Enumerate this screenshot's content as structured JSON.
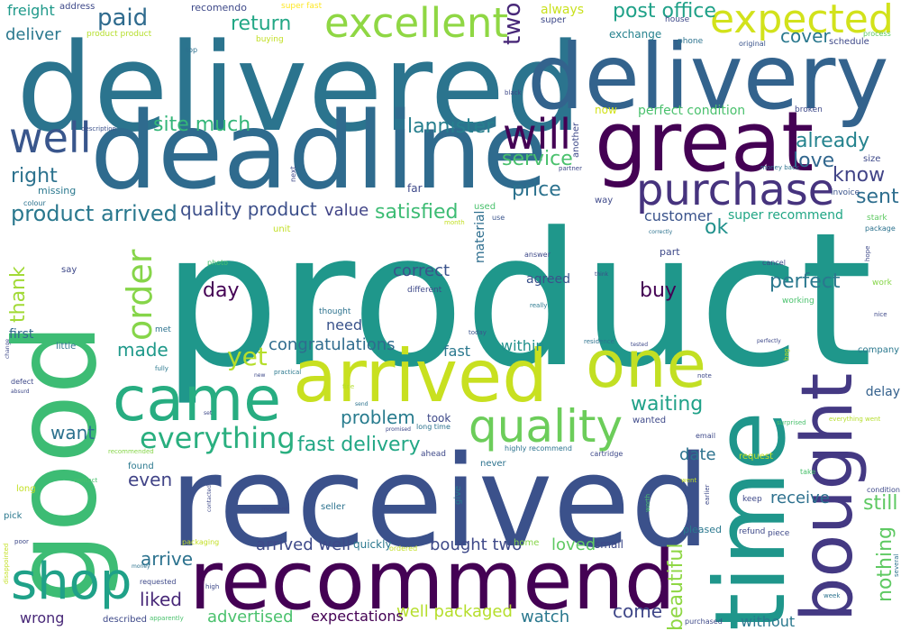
{
  "cloud": {
    "words": [
      {
        "text": "product",
        "color": "#1f978b"
      },
      {
        "text": "received",
        "color": "#3b518b"
      },
      {
        "text": "delivered",
        "color": "#2b748e"
      },
      {
        "text": "deadline",
        "color": "#2f6b8e"
      },
      {
        "text": "delivery",
        "color": "#33638d"
      },
      {
        "text": "good",
        "color": "#3dbc74"
      },
      {
        "text": "time",
        "color": "#1f968b"
      },
      {
        "text": "recommend",
        "color": "#440154"
      },
      {
        "text": "arrived",
        "color": "#c8e020"
      },
      {
        "text": "great",
        "color": "#440154"
      },
      {
        "text": "bought",
        "color": "#443983"
      },
      {
        "text": "came",
        "color": "#27ad81"
      },
      {
        "text": "one",
        "color": "#c2df23"
      },
      {
        "text": "excellent",
        "color": "#8fd744"
      },
      {
        "text": "expected",
        "color": "#d2e21b"
      },
      {
        "text": "purchase",
        "color": "#46337e"
      },
      {
        "text": "quality",
        "color": "#6ccd5a"
      },
      {
        "text": "shop",
        "color": "#1fa188"
      },
      {
        "text": "well",
        "color": "#39568c"
      },
      {
        "text": "will",
        "color": "#440154"
      },
      {
        "text": "order",
        "color": "#86d549"
      },
      {
        "text": "everything",
        "color": "#29af7f"
      },
      {
        "text": "yet",
        "color": "#b5de2b"
      },
      {
        "text": "product arrived",
        "color": "#2a788e"
      },
      {
        "text": "fast delivery",
        "color": "#22a785"
      },
      {
        "text": "paid",
        "color": "#2f6b8e"
      },
      {
        "text": "return",
        "color": "#22a785"
      },
      {
        "text": "post office",
        "color": "#1fa188"
      },
      {
        "text": "two",
        "color": "#482878"
      },
      {
        "text": "cover",
        "color": "#2a788e"
      },
      {
        "text": "site much",
        "color": "#34b679"
      },
      {
        "text": "lannister",
        "color": "#277f8e"
      },
      {
        "text": "service",
        "color": "#4ac16d"
      },
      {
        "text": "price",
        "color": "#2c728e"
      },
      {
        "text": "already",
        "color": "#25838e"
      },
      {
        "text": "love",
        "color": "#31678e"
      },
      {
        "text": "know",
        "color": "#414487"
      },
      {
        "text": "sent",
        "color": "#2e6e8e"
      },
      {
        "text": "right",
        "color": "#2c728e"
      },
      {
        "text": "quality product",
        "color": "#3c4f8a"
      },
      {
        "text": "satisfied",
        "color": "#3dbc74"
      },
      {
        "text": "value",
        "color": "#414487"
      },
      {
        "text": "customer",
        "color": "#3a538b"
      },
      {
        "text": "super recommend",
        "color": "#21a685"
      },
      {
        "text": "ok",
        "color": "#21918c"
      },
      {
        "text": "day",
        "color": "#440154"
      },
      {
        "text": "buy",
        "color": "#440154"
      },
      {
        "text": "perfect",
        "color": "#2a788e"
      },
      {
        "text": "correct",
        "color": "#3a538b"
      },
      {
        "text": "agreed",
        "color": "#3b518b"
      },
      {
        "text": "thank",
        "color": "#a2da37"
      },
      {
        "text": "made",
        "color": "#1f998a"
      },
      {
        "text": "congratulations",
        "color": "#2f6c8e"
      },
      {
        "text": "need",
        "color": "#3a538b"
      },
      {
        "text": "waiting",
        "color": "#1fa188"
      },
      {
        "text": "problem",
        "color": "#287c8e"
      },
      {
        "text": "delay",
        "color": "#34618d"
      },
      {
        "text": "want",
        "color": "#2c718e"
      },
      {
        "text": "still",
        "color": "#5ec962"
      },
      {
        "text": "date",
        "color": "#2c728e"
      },
      {
        "text": "even",
        "color": "#414487"
      },
      {
        "text": "receive",
        "color": "#2d708e"
      },
      {
        "text": "nothing",
        "color": "#5ec962"
      },
      {
        "text": "arrive",
        "color": "#2c728e"
      },
      {
        "text": "liked",
        "color": "#482878"
      },
      {
        "text": "arrived well",
        "color": "#3e4989"
      },
      {
        "text": "bought two",
        "color": "#3e4989"
      },
      {
        "text": "loved",
        "color": "#5ec962"
      },
      {
        "text": "beautiful",
        "color": "#8fd744"
      },
      {
        "text": "come",
        "color": "#3f4788"
      },
      {
        "text": "watch",
        "color": "#2a788e"
      },
      {
        "text": "well packaged",
        "color": "#b5de2b"
      },
      {
        "text": "advertised",
        "color": "#4ac16d"
      },
      {
        "text": "expectations",
        "color": "#440154"
      },
      {
        "text": "wrong",
        "color": "#482878"
      },
      {
        "text": "without",
        "color": "#2a788e"
      },
      {
        "text": "within",
        "color": "#21918c"
      },
      {
        "text": "fast",
        "color": "#2a788e"
      },
      {
        "text": "first",
        "color": "#31688e"
      },
      {
        "text": "material",
        "color": "#2e6e8e"
      },
      {
        "text": "freight",
        "color": "#1f998a"
      },
      {
        "text": "deliver",
        "color": "#2a788e"
      },
      {
        "text": "address",
        "color": "#3e4989"
      },
      {
        "text": "super fast",
        "color": "#fde725"
      },
      {
        "text": "recomendo",
        "color": "#3e4989"
      },
      {
        "text": "always",
        "color": "#cae11f"
      },
      {
        "text": "super",
        "color": "#3e4989"
      },
      {
        "text": "house",
        "color": "#3e4989"
      },
      {
        "text": "exchange",
        "color": "#26828e"
      },
      {
        "text": "phone",
        "color": "#2c728e"
      },
      {
        "text": "original",
        "color": "#3a548c"
      },
      {
        "text": "schedule",
        "color": "#3e4989"
      },
      {
        "text": "process",
        "color": "#5ec962"
      },
      {
        "text": "product product",
        "color": "#b5de2b"
      },
      {
        "text": "buying",
        "color": "#c2df23"
      },
      {
        "text": "top",
        "color": "#2d708e"
      },
      {
        "text": "black",
        "color": "#3e4989"
      },
      {
        "text": "now",
        "color": "#d2e21b"
      },
      {
        "text": "perfect condition",
        "color": "#4ac16d"
      },
      {
        "text": "broken",
        "color": "#3e4989"
      },
      {
        "text": "another",
        "color": "#3e4989"
      },
      {
        "text": "description",
        "color": "#3b518b"
      },
      {
        "text": "partner",
        "color": "#3e4989"
      },
      {
        "text": "money back",
        "color": "#2c728e"
      },
      {
        "text": "invoice",
        "color": "#3a548c"
      },
      {
        "text": "size",
        "color": "#3e4989"
      },
      {
        "text": "stark",
        "color": "#5ec962"
      },
      {
        "text": "package",
        "color": "#2c728e"
      },
      {
        "text": "next",
        "color": "#3e4989"
      },
      {
        "text": "colour",
        "color": "#2c728e"
      },
      {
        "text": "missing",
        "color": "#2a788e"
      },
      {
        "text": "far",
        "color": "#3e4989"
      },
      {
        "text": "used",
        "color": "#4ac16d"
      },
      {
        "text": "way",
        "color": "#3e4989"
      },
      {
        "text": "correctly",
        "color": "#2c728e"
      },
      {
        "text": "unit",
        "color": "#c2df23"
      },
      {
        "text": "month",
        "color": "#c2df23"
      },
      {
        "text": "use",
        "color": "#3a548c"
      },
      {
        "text": "answer",
        "color": "#3e4989"
      },
      {
        "text": "part",
        "color": "#3e4989"
      },
      {
        "text": "cancel",
        "color": "#3e4989"
      },
      {
        "text": "hope",
        "color": "#3e4989"
      },
      {
        "text": "work",
        "color": "#86d549"
      },
      {
        "text": "photo",
        "color": "#4ac16d"
      },
      {
        "text": "say",
        "color": "#3e4989"
      },
      {
        "text": "different",
        "color": "#3e4989"
      },
      {
        "text": "think",
        "color": "#3e4989"
      },
      {
        "text": "really",
        "color": "#2a788e"
      },
      {
        "text": "working",
        "color": "#4ac16d"
      },
      {
        "text": "thought",
        "color": "#2c728e"
      },
      {
        "text": "met",
        "color": "#2c728e"
      },
      {
        "text": "today",
        "color": "#3a548c"
      },
      {
        "text": "residence",
        "color": "#2c728e"
      },
      {
        "text": "tested",
        "color": "#3e4989"
      },
      {
        "text": "perfectly",
        "color": "#3e4989"
      },
      {
        "text": "nice",
        "color": "#3e4989"
      },
      {
        "text": "company",
        "color": "#2a788e"
      },
      {
        "text": "little",
        "color": "#2c728e"
      },
      {
        "text": "change",
        "color": "#3e4989"
      },
      {
        "text": "bag",
        "color": "#c2df23"
      },
      {
        "text": "note",
        "color": "#3e4989"
      },
      {
        "text": "practical",
        "color": "#2a788e"
      },
      {
        "text": "new",
        "color": "#3e4989"
      },
      {
        "text": "fully",
        "color": "#2a788e"
      },
      {
        "text": "defect",
        "color": "#3e4989"
      },
      {
        "text": "absurd",
        "color": "#3e4989"
      },
      {
        "text": "fine",
        "color": "#b5de2b"
      },
      {
        "text": "send",
        "color": "#2c728e"
      },
      {
        "text": "promised",
        "color": "#3e4989"
      },
      {
        "text": "took",
        "color": "#3e4989"
      },
      {
        "text": "long time",
        "color": "#2c728e"
      },
      {
        "text": "set",
        "color": "#3e4989"
      },
      {
        "text": "surprised",
        "color": "#4ac16d"
      },
      {
        "text": "everything went",
        "color": "#b5de2b"
      },
      {
        "text": "wanted",
        "color": "#3e4989"
      },
      {
        "text": "email",
        "color": "#3e4989"
      },
      {
        "text": "recommended",
        "color": "#86d549"
      },
      {
        "text": "contact",
        "color": "#4ac16d"
      },
      {
        "text": "ahead",
        "color": "#3e4989"
      },
      {
        "text": "highly recommend",
        "color": "#2c728e"
      },
      {
        "text": "cartridge",
        "color": "#3e4989"
      },
      {
        "text": "request",
        "color": "#c2df23"
      },
      {
        "text": "take",
        "color": "#4ac16d"
      },
      {
        "text": "found",
        "color": "#2a788e"
      },
      {
        "text": "never",
        "color": "#2c728e"
      },
      {
        "text": "give",
        "color": "#2a788e"
      },
      {
        "text": "went",
        "color": "#c2df23"
      },
      {
        "text": "earlier",
        "color": "#3e4989"
      },
      {
        "text": "condition",
        "color": "#3e4989"
      },
      {
        "text": "long",
        "color": "#c2df23"
      },
      {
        "text": "contacted",
        "color": "#3e4989"
      },
      {
        "text": "moment",
        "color": "#3e4989"
      },
      {
        "text": "seller",
        "color": "#2c728e"
      },
      {
        "text": "worth",
        "color": "#4ac16d"
      },
      {
        "text": "keep",
        "color": "#3e4989"
      },
      {
        "text": "pick",
        "color": "#2a788e"
      },
      {
        "text": "refund",
        "color": "#3e4989"
      },
      {
        "text": "piece",
        "color": "#3e4989"
      },
      {
        "text": "several",
        "color": "#2c728e"
      },
      {
        "text": "disappointed",
        "color": "#c2df23"
      },
      {
        "text": "poor",
        "color": "#3e4989"
      },
      {
        "text": "packaging",
        "color": "#c2df23"
      },
      {
        "text": "ordered",
        "color": "#c2df23"
      },
      {
        "text": "quickly",
        "color": "#2a788e"
      },
      {
        "text": "home",
        "color": "#86d549"
      },
      {
        "text": "small",
        "color": "#3e4989"
      },
      {
        "text": "pleased",
        "color": "#2a788e"
      },
      {
        "text": "money",
        "color": "#2c728e"
      },
      {
        "text": "requested",
        "color": "#3e4989"
      },
      {
        "text": "high",
        "color": "#3e4989"
      },
      {
        "text": "week",
        "color": "#2c728e"
      },
      {
        "text": "described",
        "color": "#3e4989"
      },
      {
        "text": "apparently",
        "color": "#4ac16d"
      },
      {
        "text": "purchased",
        "color": "#3e4989"
      }
    ]
  }
}
